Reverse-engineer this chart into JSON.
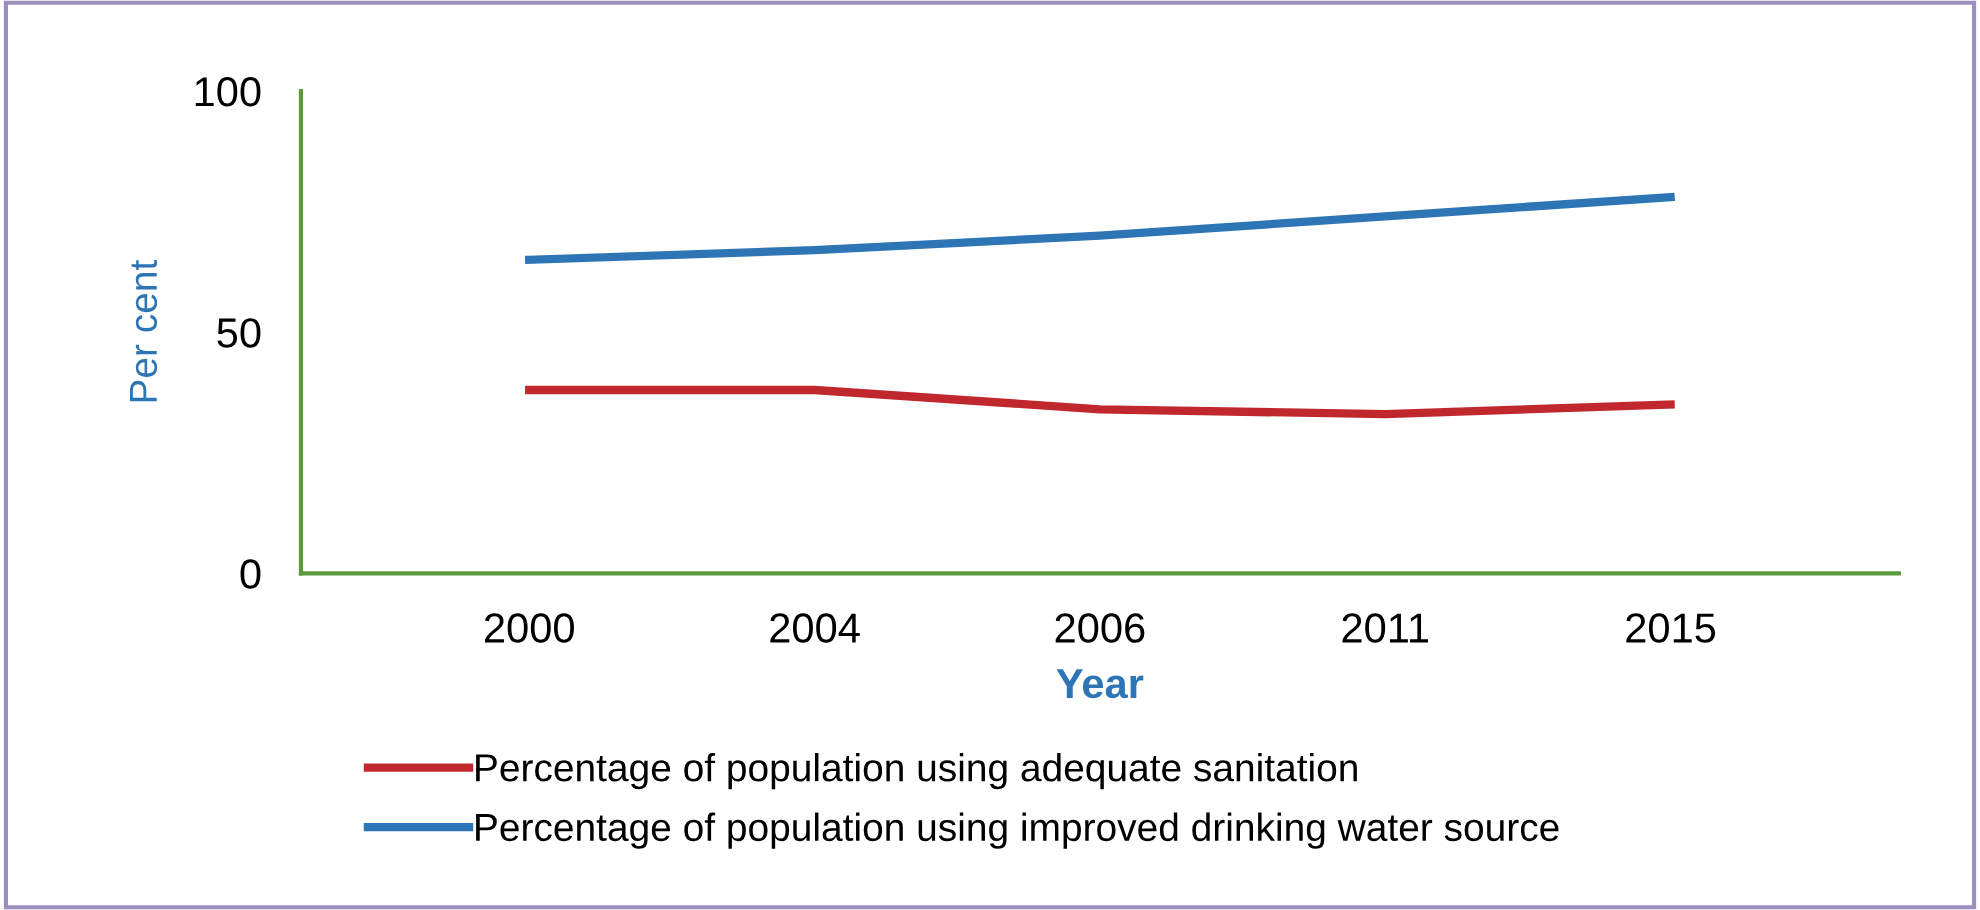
{
  "chart_data": {
    "type": "line",
    "xlabel": "Year",
    "ylabel": "Per cent",
    "categories": [
      "2000",
      "2004",
      "2006",
      "2011",
      "2015"
    ],
    "series": [
      {
        "name": "Percentage of population using adequate sanitation",
        "color": "#c0282d",
        "values": [
          38,
          38,
          34,
          33,
          35
        ]
      },
      {
        "name": "Percentage of population using improved drinking water source",
        "color": "#2e75b6",
        "values": [
          65,
          67,
          70,
          74,
          78
        ]
      }
    ],
    "ylim": [
      0,
      100
    ],
    "yticks": [
      0,
      50,
      100
    ],
    "grid": false,
    "legend": "bottom",
    "marker": "none",
    "line_style": "solid"
  }
}
